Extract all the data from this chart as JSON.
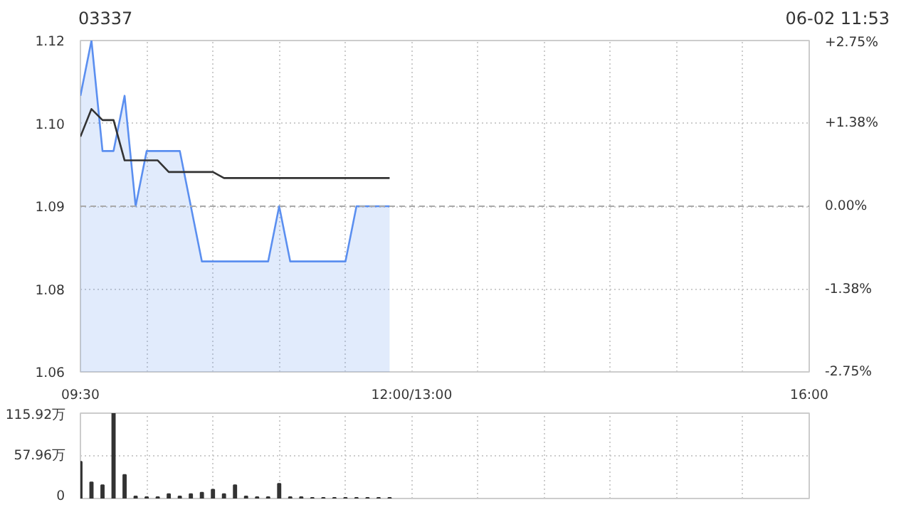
{
  "chart_data": [
    {
      "type": "area",
      "title": "03337",
      "annotations": [
        "06-02 11:53"
      ],
      "categories": [
        "09:30",
        null,
        null,
        null,
        null,
        null,
        null,
        null,
        null,
        null,
        null,
        null,
        null,
        null,
        null,
        null,
        null,
        null,
        null,
        null,
        null,
        null,
        null,
        null,
        null,
        null,
        null,
        null,
        null,
        null,
        "12:00/13:00",
        null,
        null,
        null,
        null,
        null,
        null,
        null,
        null,
        null,
        null,
        null,
        null,
        null,
        null,
        null,
        null,
        null,
        null,
        null,
        null,
        null,
        null,
        null,
        null,
        null,
        null,
        null,
        null,
        null,
        null,
        null,
        null,
        null,
        null,
        null,
        "16:00"
      ],
      "ylim": [
        1.06,
        1.12
      ],
      "yticks": [
        {
          "value": 1.06,
          "label": "1.06"
        },
        {
          "value": 1.075,
          "label": "1.08"
        },
        {
          "value": 1.09,
          "label": "1.09"
        },
        {
          "value": 1.105,
          "label": "1.10"
        },
        {
          "value": 1.12,
          "label": "1.12"
        }
      ],
      "y2lim": [
        -2.75,
        2.75
      ],
      "y2ticks": [
        {
          "value": -2.75,
          "label": "-2.75%"
        },
        {
          "value": -1.38,
          "label": "-1.38%"
        },
        {
          "value": 0,
          "label": "0.00%"
        },
        {
          "value": 1.38,
          "label": "+1.38%"
        },
        {
          "value": 2.75,
          "label": "+2.75%"
        }
      ],
      "grid": true,
      "marker": "none",
      "line_style": "solid",
      "ref_lines": [
        {
          "axis": "y",
          "value": 1.09,
          "line_style": "dashed",
          "color": "#aaaaaa"
        }
      ],
      "series": [
        {
          "type": "area",
          "color": "#5b8ff0",
          "values": [
            1.11,
            1.12,
            1.1,
            1.1,
            1.11,
            1.09,
            1.1,
            1.1,
            1.1,
            1.1,
            1.09,
            1.08,
            1.08,
            1.08,
            1.08,
            1.08,
            1.08,
            1.08,
            1.09,
            1.08,
            1.08,
            1.08,
            1.08,
            1.08,
            1.08,
            1.09,
            1.09,
            1.09,
            1.09,
            null,
            null,
            null,
            null,
            null,
            null,
            null,
            null,
            null,
            null,
            null,
            null,
            null,
            null,
            null,
            null,
            null,
            null,
            null,
            null,
            null,
            null,
            null,
            null,
            null,
            null,
            null,
            null,
            null,
            null,
            null,
            null,
            null,
            null,
            null,
            null,
            null,
            null
          ]
        },
        {
          "type": "line",
          "color": "#333333",
          "values": [
            1.1026,
            1.1076,
            1.1056,
            1.1056,
            1.0983,
            1.0983,
            1.0983,
            1.0983,
            1.0962,
            1.0962,
            1.0962,
            1.0962,
            1.0962,
            1.0951,
            1.0951,
            1.0951,
            1.0951,
            1.0951,
            1.0951,
            1.0951,
            1.0951,
            1.0951,
            1.0951,
            1.0951,
            1.0951,
            1.0951,
            1.0951,
            1.0951,
            1.0951,
            null,
            null,
            null,
            null,
            null,
            null,
            null,
            null,
            null,
            null,
            null,
            null,
            null,
            null,
            null,
            null,
            null,
            null,
            null,
            null,
            null,
            null,
            null,
            null,
            null,
            null,
            null,
            null,
            null,
            null,
            null,
            null,
            null,
            null,
            null,
            null,
            null,
            null
          ]
        }
      ]
    },
    {
      "type": "bar",
      "tick_labels": "y",
      "grid": true,
      "categories": [
        null,
        null,
        null,
        null,
        null,
        null,
        null,
        null,
        null,
        null,
        null,
        null,
        null,
        null,
        null,
        null,
        null,
        null,
        null,
        null,
        null,
        null,
        null,
        null,
        null,
        null,
        null,
        null,
        null,
        null,
        null,
        null,
        null,
        null,
        null,
        null,
        null,
        null,
        null,
        null,
        null,
        null,
        null,
        null,
        null,
        null,
        null,
        null,
        null,
        null,
        null,
        null,
        null,
        null,
        null,
        null,
        null,
        null,
        null,
        null,
        null,
        null,
        null,
        null,
        null,
        null,
        null
      ],
      "ylim": [
        0,
        115.92
      ],
      "yticks": [
        0,
        {
          "value": 57.96,
          "label": "57.96万"
        },
        {
          "value": 115.92,
          "label": "115.92万"
        }
      ],
      "series": [
        {
          "color": "#333333",
          "values": [
            50,
            22,
            18,
            115.92,
            32,
            3,
            2,
            2,
            6,
            3,
            6,
            8,
            12,
            6,
            18,
            3,
            2,
            2,
            20,
            2,
            2,
            1,
            1,
            1,
            1,
            1,
            1,
            1,
            1,
            null,
            null,
            null,
            null,
            null,
            null,
            null,
            null,
            null,
            null,
            null,
            null,
            null,
            null,
            null,
            null,
            null,
            null,
            null,
            null,
            null,
            null,
            null,
            null,
            null,
            null,
            null,
            null,
            null,
            null,
            null,
            null,
            null,
            null,
            null,
            null,
            null,
            null
          ]
        }
      ]
    }
  ]
}
